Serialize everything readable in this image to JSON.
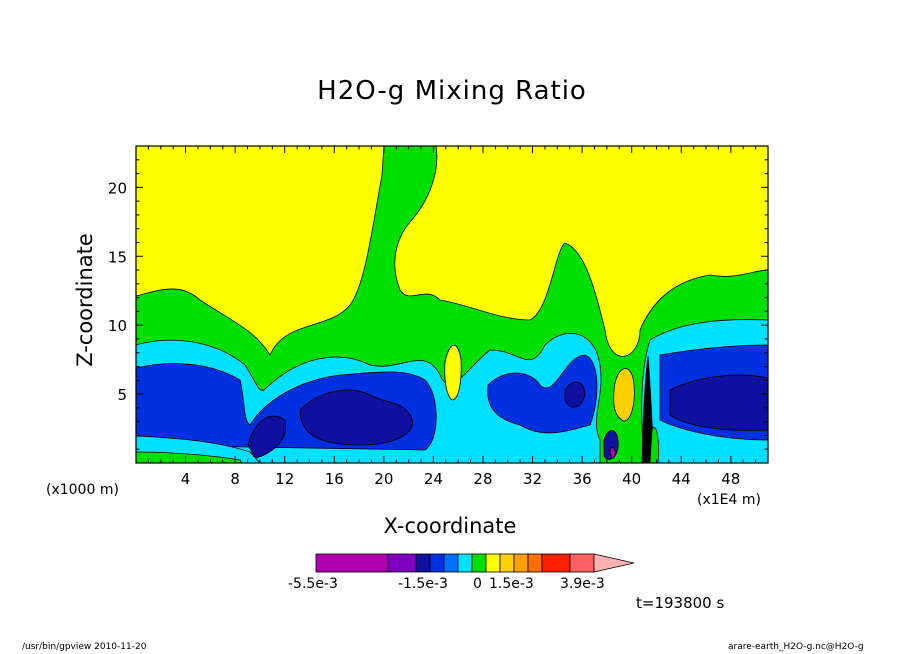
{
  "chart_data": {
    "type": "heatmap",
    "title": "H2O-g Mixing Ratio",
    "xlabel": "X-coordinate",
    "ylabel": "Z-coordinate",
    "x_unit_left": "(x1000 m)",
    "x_unit_right": "(x1E4 m)",
    "xlim": [
      0,
      51
    ],
    "ylim": [
      0,
      23
    ],
    "x_ticks": [
      4,
      8,
      12,
      16,
      20,
      24,
      28,
      32,
      36,
      40,
      44,
      48
    ],
    "y_ticks": [
      5,
      10,
      15,
      20
    ],
    "time_label": "t=193800 s",
    "colorbar": {
      "colors": [
        "#b000b0",
        "#8000c0",
        "#1010a0",
        "#0030e0",
        "#0070ff",
        "#00e0ff",
        "#00e000",
        "#ffff00",
        "#ffd000",
        "#ffa000",
        "#ff7000",
        "#ff2000",
        "#ff6060",
        "#ffb0b0"
      ],
      "labels": [
        "-5.5e-3",
        "-1.5e-3",
        "0",
        "1.5e-3",
        "3.9e-3"
      ]
    },
    "regions": [
      {
        "name": "moist-yellow",
        "color": "#ffff00"
      },
      {
        "name": "green-band",
        "color": "#00e000"
      },
      {
        "name": "cyan-band",
        "color": "#00e0ff"
      },
      {
        "name": "blue-band",
        "color": "#0030e0"
      },
      {
        "name": "dark-blue-core",
        "color": "#1010a0"
      }
    ]
  },
  "footer": {
    "left": "/usr/bin/gpview   2010-11-20",
    "right": "arare-earth_H2O-g.nc@H2O-g"
  }
}
